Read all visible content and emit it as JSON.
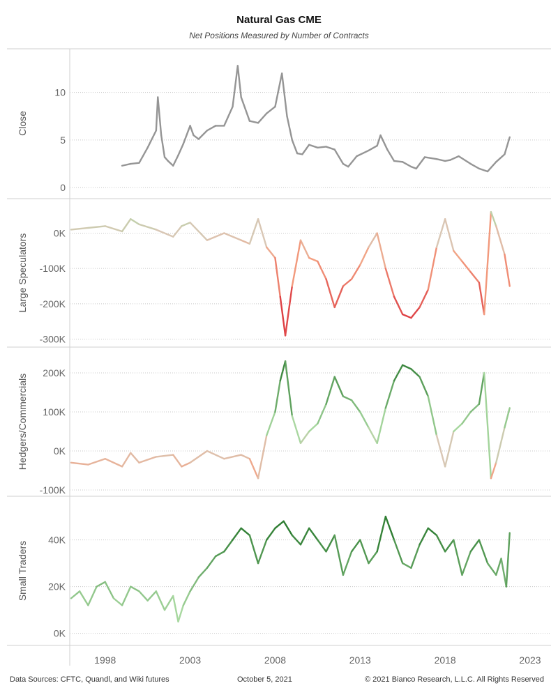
{
  "title": "Natural Gas CME",
  "subtitle": "Net Positions Measured by Number of Contracts",
  "footer": {
    "sources": "Data Sources: CFTC, Quandl, and Wiki futures",
    "date": "October 5, 2021",
    "copyright": "© 2021 Bianco Research, L.L.C. All Rights Reserved"
  },
  "colors": {
    "close_line": "#959595",
    "positive_dark": "#2e7d32",
    "positive_light": "#a8d8a0",
    "neutral": "#d9c7b5",
    "negative_light": "#f4a081",
    "negative_dark": "#d62030"
  },
  "chart_data": [
    {
      "type": "line",
      "panel": "Close",
      "ylabel": "Close",
      "ylim": [
        -0.5,
        14
      ],
      "yticks": [
        0,
        5,
        10
      ],
      "ytick_labels": [
        "0",
        "5",
        "10"
      ],
      "xlim": [
        1996,
        2023
      ],
      "xticks": [
        1998,
        2003,
        2008,
        2013,
        2018,
        2023
      ],
      "x": [
        1999.0,
        1999.5,
        2000.0,
        2000.5,
        2001.0,
        2001.1,
        2001.3,
        2001.5,
        2001.7,
        2002.0,
        2002.3,
        2002.6,
        2003.0,
        2003.2,
        2003.5,
        2004.0,
        2004.5,
        2005.0,
        2005.5,
        2005.8,
        2006.0,
        2006.5,
        2007.0,
        2007.5,
        2008.0,
        2008.4,
        2008.7,
        2009.0,
        2009.3,
        2009.6,
        2010.0,
        2010.5,
        2011.0,
        2011.5,
        2012.0,
        2012.3,
        2012.8,
        2013.5,
        2014.0,
        2014.2,
        2014.6,
        2015.0,
        2015.5,
        2016.0,
        2016.3,
        2016.8,
        2017.5,
        2018.0,
        2018.3,
        2018.8,
        2019.5,
        2020.0,
        2020.5,
        2021.0,
        2021.5,
        2021.8
      ],
      "values": [
        2.3,
        2.5,
        2.6,
        4.2,
        6.0,
        9.5,
        5.5,
        3.2,
        2.8,
        2.3,
        3.4,
        4.6,
        6.5,
        5.5,
        5.1,
        6.0,
        6.5,
        6.5,
        8.5,
        12.8,
        9.5,
        7.0,
        6.8,
        7.8,
        8.5,
        12.0,
        7.5,
        5.0,
        3.6,
        3.5,
        4.5,
        4.2,
        4.3,
        4.0,
        2.5,
        2.2,
        3.3,
        3.9,
        4.4,
        5.5,
        4.0,
        2.8,
        2.7,
        2.2,
        2.0,
        3.2,
        3.0,
        2.8,
        2.9,
        3.3,
        2.5,
        2.0,
        1.7,
        2.7,
        3.5,
        5.3
      ]
    },
    {
      "type": "line",
      "panel": "Large Speculators",
      "ylabel": "Large Speculators",
      "ylim": [
        -305000,
        80000
      ],
      "yticks": [
        0,
        -100000,
        -200000,
        -300000
      ],
      "ytick_labels": [
        "0K",
        "-100K",
        "-200K",
        "-300K"
      ],
      "xlim": [
        1996,
        2023
      ],
      "x": [
        1996.0,
        1997.0,
        1998.0,
        1999.0,
        1999.5,
        2000.0,
        2001.0,
        2002.0,
        2002.5,
        2003.0,
        2004.0,
        2005.0,
        2006.0,
        2006.5,
        2007.0,
        2007.5,
        2008.0,
        2008.3,
        2008.6,
        2009.0,
        2009.5,
        2010.0,
        2010.5,
        2011.0,
        2011.5,
        2012.0,
        2012.5,
        2013.0,
        2013.5,
        2014.0,
        2014.5,
        2015.0,
        2015.5,
        2016.0,
        2016.5,
        2017.0,
        2017.5,
        2018.0,
        2018.5,
        2019.0,
        2019.5,
        2020.0,
        2020.3,
        2020.7,
        2021.0,
        2021.5,
        2021.8
      ],
      "values": [
        10000,
        15000,
        20000,
        5000,
        40000,
        25000,
        10000,
        -10000,
        20000,
        30000,
        -20000,
        0,
        -20000,
        -30000,
        40000,
        -40000,
        -70000,
        -180000,
        -290000,
        -150000,
        -20000,
        -70000,
        -80000,
        -130000,
        -210000,
        -150000,
        -130000,
        -90000,
        -40000,
        0,
        -100000,
        -180000,
        -230000,
        -240000,
        -210000,
        -160000,
        -40000,
        40000,
        -50000,
        -80000,
        -110000,
        -140000,
        -230000,
        60000,
        20000,
        -60000,
        -150000
      ]
    },
    {
      "type": "line",
      "panel": "Hedgers/Commercials",
      "ylabel": "Hedgers/Commercials",
      "ylim": [
        -100000,
        250000
      ],
      "yticks": [
        200000,
        100000,
        0,
        -100000
      ],
      "ytick_labels": [
        "200K",
        "100K",
        "0K",
        "-100K"
      ],
      "xlim": [
        1996,
        2023
      ],
      "x": [
        1996.0,
        1997.0,
        1998.0,
        1999.0,
        1999.5,
        2000.0,
        2001.0,
        2002.0,
        2002.5,
        2003.0,
        2004.0,
        2005.0,
        2006.0,
        2006.5,
        2007.0,
        2007.5,
        2008.0,
        2008.3,
        2008.6,
        2009.0,
        2009.5,
        2010.0,
        2010.5,
        2011.0,
        2011.5,
        2012.0,
        2012.5,
        2013.0,
        2013.5,
        2014.0,
        2014.5,
        2015.0,
        2015.5,
        2016.0,
        2016.5,
        2017.0,
        2017.5,
        2018.0,
        2018.5,
        2019.0,
        2019.5,
        2020.0,
        2020.3,
        2020.7,
        2021.0,
        2021.5,
        2021.8
      ],
      "values": [
        -30000,
        -35000,
        -20000,
        -40000,
        -5000,
        -30000,
        -15000,
        -10000,
        -40000,
        -30000,
        0,
        -20000,
        -10000,
        -20000,
        -70000,
        40000,
        100000,
        180000,
        230000,
        90000,
        20000,
        50000,
        70000,
        120000,
        190000,
        140000,
        130000,
        100000,
        60000,
        20000,
        110000,
        180000,
        220000,
        210000,
        190000,
        140000,
        40000,
        -40000,
        50000,
        70000,
        100000,
        120000,
        200000,
        -70000,
        -30000,
        60000,
        110000
      ]
    },
    {
      "type": "line",
      "panel": "Small Traders",
      "ylabel": "Small Traders",
      "ylim": [
        -2500,
        56000
      ],
      "yticks": [
        0,
        20000,
        40000
      ],
      "ytick_labels": [
        "0K",
        "20K",
        "40K"
      ],
      "xlim": [
        1996,
        2023
      ],
      "x": [
        1996.0,
        1996.5,
        1997.0,
        1997.5,
        1998.0,
        1998.5,
        1999.0,
        1999.5,
        2000.0,
        2000.5,
        2001.0,
        2001.5,
        2002.0,
        2002.3,
        2002.6,
        2003.0,
        2003.5,
        2004.0,
        2004.5,
        2005.0,
        2005.5,
        2006.0,
        2006.5,
        2007.0,
        2007.5,
        2008.0,
        2008.5,
        2009.0,
        2009.5,
        2010.0,
        2010.5,
        2011.0,
        2011.5,
        2012.0,
        2012.5,
        2013.0,
        2013.5,
        2014.0,
        2014.5,
        2015.0,
        2015.5,
        2016.0,
        2016.5,
        2017.0,
        2017.5,
        2018.0,
        2018.5,
        2019.0,
        2019.5,
        2020.0,
        2020.5,
        2021.0,
        2021.3,
        2021.6,
        2021.8
      ],
      "values": [
        15000,
        18000,
        12000,
        20000,
        22000,
        15000,
        12000,
        20000,
        18000,
        14000,
        18000,
        10000,
        16000,
        5000,
        12000,
        18000,
        24000,
        28000,
        33000,
        35000,
        40000,
        45000,
        42000,
        30000,
        40000,
        45000,
        48000,
        42000,
        38000,
        45000,
        40000,
        35000,
        42000,
        25000,
        35000,
        40000,
        30000,
        35000,
        50000,
        40000,
        30000,
        28000,
        38000,
        45000,
        42000,
        35000,
        40000,
        25000,
        35000,
        40000,
        30000,
        25000,
        32000,
        20000,
        43000
      ]
    }
  ]
}
